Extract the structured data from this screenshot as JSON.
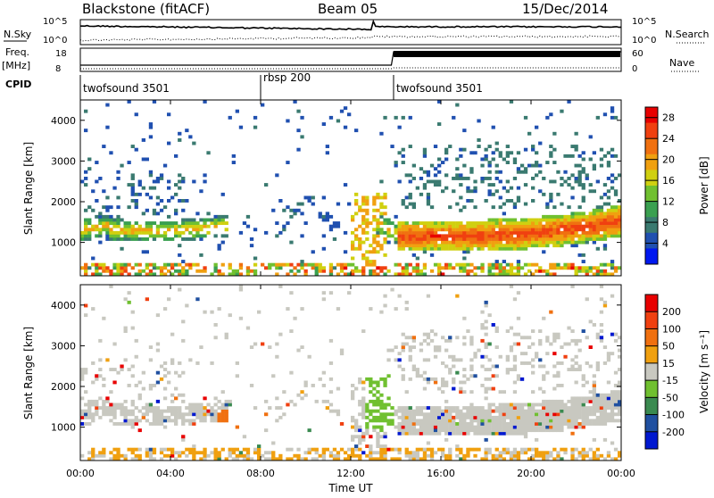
{
  "header": {
    "station": "Blackstone (fitACF)",
    "beam": "Beam 05",
    "date": "15/Dec/2014"
  },
  "status_panels": {
    "nsky_label": "N.Sky",
    "nsky_ticks": [
      "10^5",
      "10^0"
    ],
    "nsearch_label": "N.Search",
    "nsearch_ticks": [
      "10^5",
      "10^0"
    ],
    "freq_label": "Freq.",
    "freq_unit": "[MHz]",
    "freq_ticks": [
      "18",
      "8"
    ],
    "nave_label": "Nave",
    "nave_ticks": [
      "60",
      "0"
    ],
    "cpid_label": "CPID",
    "cpid_segments": [
      {
        "label": "twofsound 3501",
        "start": 0,
        "end": 8
      },
      {
        "label": "rbsp 200",
        "start": 8,
        "end": 13.9
      },
      {
        "label": "twofsound 3501",
        "start": 13.9,
        "end": 24
      }
    ]
  },
  "chart_data": [
    {
      "type": "heatmap",
      "name": "power",
      "ylabel": "Slant Range [km]",
      "y_ticks": [
        1000,
        2000,
        3000,
        4000
      ],
      "ylim": [
        180,
        4500
      ],
      "x_ticks": [
        "00:00",
        "04:00",
        "08:00",
        "12:00",
        "16:00",
        "20:00",
        "00:00"
      ],
      "xlim": [
        0,
        24
      ],
      "colorbar": {
        "label": "Power [dB]",
        "ticks": [
          "4",
          "8",
          "12",
          "16",
          "20",
          "24",
          "28"
        ],
        "min": 0,
        "max": 30,
        "colors": [
          "#0018f0",
          "#2050b0",
          "#3a7a70",
          "#3aa050",
          "#70c030",
          "#d0d010",
          "#f0a010",
          "#f07010",
          "#f04010",
          "#e80000"
        ]
      }
    },
    {
      "type": "heatmap",
      "name": "velocity",
      "ylabel": "Slant Range [km]",
      "y_ticks": [
        1000,
        2000,
        3000,
        4000
      ],
      "ylim": [
        180,
        4500
      ],
      "x_ticks": [
        "00:00",
        "04:00",
        "08:00",
        "12:00",
        "16:00",
        "20:00",
        "00:00"
      ],
      "xlim": [
        0,
        24
      ],
      "xlabel": "Time UT",
      "colorbar": {
        "label": "Velocity [m s⁻¹]",
        "ticks": [
          "200",
          "100",
          "50",
          "15",
          "-15",
          "-50",
          "-100",
          "-200"
        ],
        "colors": [
          "#0018d0",
          "#2050a0",
          "#3a8a50",
          "#70c030",
          "#c8c8c0",
          "#f0a010",
          "#f07010",
          "#f04010",
          "#e80000"
        ]
      }
    }
  ]
}
